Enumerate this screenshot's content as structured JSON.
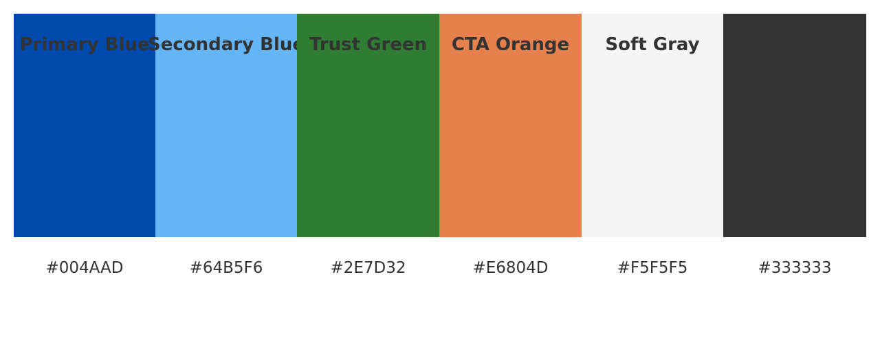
{
  "palette": {
    "swatches": [
      {
        "name": "Primary Blue",
        "hex": "#004AAD",
        "color": "#004AAD"
      },
      {
        "name": "Secondary Blue",
        "hex": "#64B5F6",
        "color": "#64B5F6"
      },
      {
        "name": "Trust Green",
        "hex": "#2E7D32",
        "color": "#2E7D32"
      },
      {
        "name": "CTA Orange",
        "hex": "#E6804D",
        "color": "#E6804D"
      },
      {
        "name": "Soft Gray",
        "hex": "#F5F5F5",
        "color": "#F5F5F5"
      },
      {
        "name": "",
        "hex": "#333333",
        "color": "#333333"
      }
    ],
    "label_color": "#333333"
  }
}
